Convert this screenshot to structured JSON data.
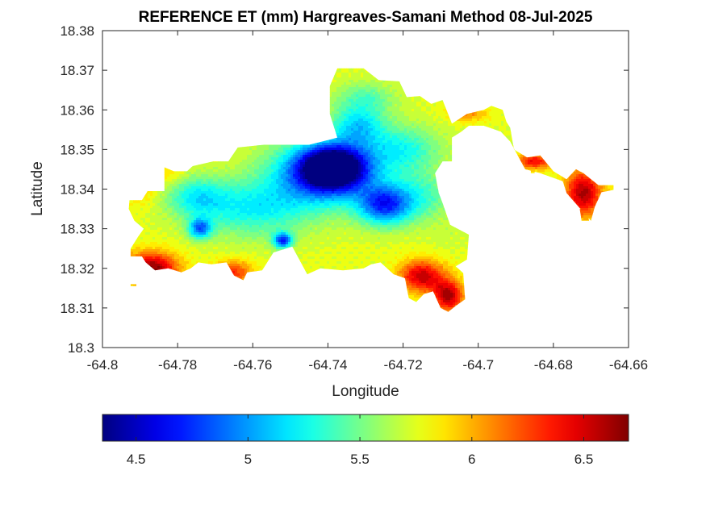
{
  "chart_data": {
    "type": "heatmap",
    "title": "REFERENCE ET (mm) Hargreaves-Samani Method  08-Jul-2025",
    "xlabel": "Longitude",
    "ylabel": "Latitude",
    "xlim": [
      -64.8,
      -64.66
    ],
    "ylim": [
      18.3,
      18.38
    ],
    "x_ticks": [
      -64.8,
      -64.78,
      -64.76,
      -64.74,
      -64.72,
      -64.7,
      -64.68,
      -64.66
    ],
    "x_tick_labels": [
      "-64.8",
      "-64.78",
      "-64.76",
      "-64.74",
      "-64.72",
      "-64.7",
      "-64.68",
      "-64.66"
    ],
    "y_ticks": [
      18.3,
      18.31,
      18.32,
      18.33,
      18.34,
      18.35,
      18.36,
      18.37,
      18.38
    ],
    "y_tick_labels": [
      "18.3",
      "18.31",
      "18.32",
      "18.33",
      "18.34",
      "18.35",
      "18.36",
      "18.37",
      "18.38"
    ],
    "colorbar": {
      "colormap": "jet",
      "orientation": "horizontal",
      "placement": "bottom",
      "range": [
        4.35,
        6.7
      ],
      "ticks": [
        4.5,
        5,
        5.5,
        6,
        6.5
      ],
      "tick_labels": [
        "4.5",
        "5",
        "5.5",
        "6",
        "6.5"
      ]
    },
    "box": true,
    "grid": false,
    "field": {
      "base_value": 5.75,
      "features": [
        {
          "lon": -64.7385,
          "lat": 18.3455,
          "rx": 0.008,
          "ry": 0.005,
          "value": 4.4
        },
        {
          "lon": -64.741,
          "lat": 18.344,
          "rx": 0.014,
          "ry": 0.008,
          "value": 4.75
        },
        {
          "lon": -64.725,
          "lat": 18.336,
          "rx": 0.007,
          "ry": 0.005,
          "value": 4.8
        },
        {
          "lon": -64.752,
          "lat": 18.327,
          "rx": 0.0025,
          "ry": 0.002,
          "value": 4.8
        },
        {
          "lon": -64.774,
          "lat": 18.33,
          "rx": 0.003,
          "ry": 0.0025,
          "value": 4.95
        },
        {
          "lon": -64.732,
          "lat": 18.356,
          "rx": 0.007,
          "ry": 0.005,
          "value": 5.2
        },
        {
          "lon": -64.72,
          "lat": 18.35,
          "rx": 0.01,
          "ry": 0.006,
          "value": 5.3
        },
        {
          "lon": -64.76,
          "lat": 18.335,
          "rx": 0.015,
          "ry": 0.007,
          "value": 5.25
        },
        {
          "lon": -64.775,
          "lat": 18.338,
          "rx": 0.008,
          "ry": 0.005,
          "value": 5.3
        },
        {
          "lon": -64.73,
          "lat": 18.363,
          "rx": 0.008,
          "ry": 0.004,
          "value": 5.45
        },
        {
          "lon": -64.715,
          "lat": 18.338,
          "rx": 0.008,
          "ry": 0.006,
          "value": 5.4
        },
        {
          "lon": -64.787,
          "lat": 18.32,
          "rx": 0.007,
          "ry": 0.004,
          "value": 6.7
        },
        {
          "lon": -64.765,
          "lat": 18.319,
          "rx": 0.005,
          "ry": 0.003,
          "value": 6.3
        },
        {
          "lon": -64.715,
          "lat": 18.318,
          "rx": 0.006,
          "ry": 0.004,
          "value": 6.55
        },
        {
          "lon": -64.708,
          "lat": 18.313,
          "rx": 0.004,
          "ry": 0.004,
          "value": 6.6
        },
        {
          "lon": -64.703,
          "lat": 18.359,
          "rx": 0.005,
          "ry": 0.002,
          "value": 6.1
        },
        {
          "lon": -64.708,
          "lat": 18.369,
          "rx": 0.004,
          "ry": 0.002,
          "value": 6.3
        },
        {
          "lon": -64.672,
          "lat": 18.339,
          "rx": 0.005,
          "ry": 0.006,
          "value": 6.6
        },
        {
          "lon": -64.685,
          "lat": 18.347,
          "rx": 0.005,
          "ry": 0.002,
          "value": 6.4
        },
        {
          "lon": -64.79,
          "lat": 18.34,
          "rx": 0.005,
          "ry": 0.004,
          "value": 5.95
        },
        {
          "lon": -64.782,
          "lat": 18.344,
          "rx": 0.004,
          "ry": 0.003,
          "value": 5.9
        },
        {
          "lon": -64.708,
          "lat": 18.328,
          "rx": 0.005,
          "ry": 0.004,
          "value": 5.7
        }
      ],
      "outline": [
        [
          -64.7928,
          18.3372
        ],
        [
          -64.7895,
          18.3372
        ],
        [
          -64.788,
          18.3395
        ],
        [
          -64.7835,
          18.3395
        ],
        [
          -64.7835,
          18.3455
        ],
        [
          -64.781,
          18.3445
        ],
        [
          -64.7775,
          18.3445
        ],
        [
          -64.776,
          18.3458
        ],
        [
          -64.7705,
          18.347
        ],
        [
          -64.7665,
          18.347
        ],
        [
          -64.764,
          18.3505
        ],
        [
          -64.757,
          18.3512
        ],
        [
          -64.745,
          18.3512
        ],
        [
          -64.7395,
          18.3525
        ],
        [
          -64.7375,
          18.353
        ],
        [
          -64.7395,
          18.359
        ],
        [
          -64.7395,
          18.366
        ],
        [
          -64.7375,
          18.3705
        ],
        [
          -64.7305,
          18.3705
        ],
        [
          -64.7265,
          18.3675
        ],
        [
          -64.721,
          18.3672
        ],
        [
          -64.719,
          18.3632
        ],
        [
          -64.7155,
          18.3635
        ],
        [
          -64.7125,
          18.3615
        ],
        [
          -64.7095,
          18.3625
        ],
        [
          -64.707,
          18.3565
        ],
        [
          -64.703,
          18.359
        ],
        [
          -64.6985,
          18.36
        ],
        [
          -64.6965,
          18.361
        ],
        [
          -64.6935,
          18.36
        ],
        [
          -64.6925,
          18.357
        ],
        [
          -64.6915,
          18.3555
        ],
        [
          -64.6905,
          18.35
        ],
        [
          -64.687,
          18.348
        ],
        [
          -64.6835,
          18.3485
        ],
        [
          -64.68,
          18.3445
        ],
        [
          -64.6765,
          18.3425
        ],
        [
          -64.674,
          18.345
        ],
        [
          -64.672,
          18.344
        ],
        [
          -64.668,
          18.341
        ],
        [
          -64.664,
          18.341
        ],
        [
          -64.664,
          18.3398
        ],
        [
          -64.6672,
          18.3392
        ],
        [
          -64.669,
          18.3355
        ],
        [
          -64.67,
          18.332
        ],
        [
          -64.6728,
          18.335
        ],
        [
          -64.6765,
          18.339
        ],
        [
          -64.6775,
          18.342
        ],
        [
          -64.6835,
          18.344
        ],
        [
          -64.6875,
          18.345
        ],
        [
          -64.6915,
          18.352
        ],
        [
          -64.694,
          18.3545
        ],
        [
          -64.6985,
          18.356
        ],
        [
          -64.7025,
          18.356
        ],
        [
          -64.7045,
          18.3545
        ],
        [
          -64.707,
          18.353
        ],
        [
          -64.707,
          18.347
        ],
        [
          -64.7095,
          18.347
        ],
        [
          -64.7115,
          18.344
        ],
        [
          -64.7105,
          18.339
        ],
        [
          -64.7095,
          18.3365
        ],
        [
          -64.7075,
          18.331
        ],
        [
          -64.7025,
          18.3285
        ],
        [
          -64.703,
          18.3222
        ],
        [
          -64.706,
          18.3205
        ],
        [
          -64.704,
          18.3188
        ],
        [
          -64.7035,
          18.3122
        ],
        [
          -64.706,
          18.3105
        ],
        [
          -64.708,
          18.309
        ],
        [
          -64.71,
          18.31
        ],
        [
          -64.712,
          18.3142
        ],
        [
          -64.7145,
          18.3135
        ],
        [
          -64.7165,
          18.3115
        ],
        [
          -64.7185,
          18.3125
        ],
        [
          -64.7195,
          18.3175
        ],
        [
          -64.7225,
          18.3185
        ],
        [
          -64.726,
          18.3215
        ],
        [
          -64.7285,
          18.321
        ],
        [
          -64.7305,
          18.32
        ],
        [
          -64.736,
          18.3195
        ],
        [
          -64.742,
          18.32
        ],
        [
          -64.7455,
          18.3185
        ],
        [
          -64.7495,
          18.3255
        ],
        [
          -64.7545,
          18.324
        ],
        [
          -64.7575,
          18.3195
        ],
        [
          -64.7615,
          18.319
        ],
        [
          -64.7625,
          18.317
        ],
        [
          -64.765,
          18.3182
        ],
        [
          -64.767,
          18.3215
        ],
        [
          -64.771,
          18.321
        ],
        [
          -64.7745,
          18.3215
        ],
        [
          -64.7765,
          18.32
        ],
        [
          -64.779,
          18.319
        ],
        [
          -64.7825,
          18.32
        ],
        [
          -64.786,
          18.3195
        ],
        [
          -64.7885,
          18.3215
        ],
        [
          -64.7895,
          18.323
        ],
        [
          -64.7925,
          18.323
        ],
        [
          -64.7925,
          18.325
        ],
        [
          -64.7905,
          18.328
        ],
        [
          -64.789,
          18.33
        ],
        [
          -64.7915,
          18.332
        ],
        [
          -64.793,
          18.335
        ]
      ],
      "islets": [
        [
          [
            -64.7925,
            18.316
          ],
          [
            -64.791,
            18.316
          ],
          [
            -64.791,
            18.3155
          ],
          [
            -64.7925,
            18.3155
          ]
        ],
        [
          [
            -64.673,
            18.335
          ],
          [
            -64.671,
            18.335
          ],
          [
            -64.6705,
            18.332
          ],
          [
            -64.6725,
            18.332
          ]
        ],
        [
          [
            -64.686,
            18.346
          ],
          [
            -64.685,
            18.346
          ],
          [
            -64.685,
            18.344
          ],
          [
            -64.686,
            18.344
          ]
        ]
      ]
    }
  }
}
